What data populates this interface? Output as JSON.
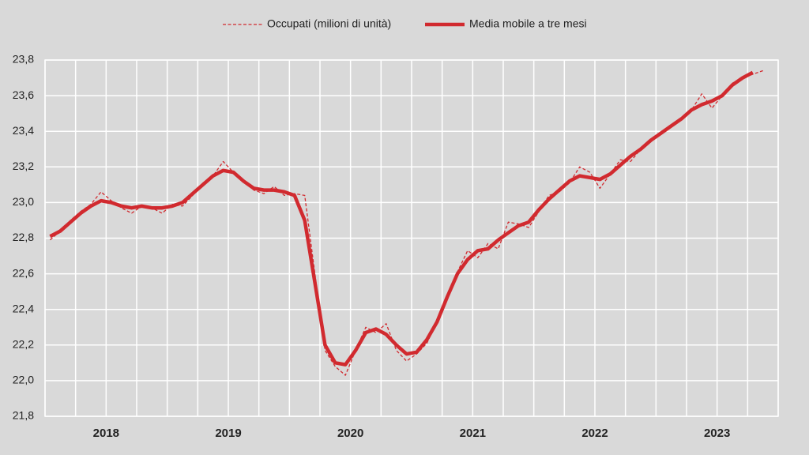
{
  "chart_data": {
    "type": "line",
    "categories": [
      null,
      null,
      null,
      null,
      null,
      null,
      "2018",
      null,
      null,
      null,
      null,
      null,
      null,
      null,
      null,
      null,
      null,
      null,
      "2019",
      null,
      null,
      null,
      null,
      null,
      null,
      null,
      null,
      null,
      null,
      null,
      "2020",
      null,
      null,
      null,
      null,
      null,
      null,
      null,
      null,
      null,
      null,
      null,
      "2021",
      null,
      null,
      null,
      null,
      null,
      null,
      null,
      null,
      null,
      null,
      null,
      "2022",
      null,
      null,
      null,
      null,
      null,
      null,
      null,
      null,
      null,
      null,
      null,
      "2023",
      null,
      null,
      null,
      null
    ],
    "series": [
      {
        "name": "Occupati (milioni di unità)",
        "color": "#d12a2f",
        "dashed": true,
        "values": [
          22.79,
          22.84,
          22.9,
          22.95,
          22.99,
          23.06,
          23.01,
          22.97,
          22.94,
          22.98,
          22.97,
          22.94,
          22.99,
          22.98,
          23.04,
          23.11,
          23.15,
          23.23,
          23.17,
          23.12,
          23.07,
          23.05,
          23.09,
          23.04,
          23.05,
          23.04,
          22.6,
          22.17,
          22.08,
          22.03,
          22.17,
          22.3,
          22.27,
          22.32,
          22.17,
          22.11,
          22.15,
          22.21,
          22.33,
          22.48,
          22.61,
          22.73,
          22.69,
          22.77,
          22.74,
          22.89,
          22.88,
          22.86,
          22.95,
          23.04,
          23.06,
          23.11,
          23.2,
          23.17,
          23.08,
          23.16,
          23.24,
          23.23,
          23.3,
          23.35,
          23.39,
          23.43,
          23.47,
          23.52,
          23.61,
          23.53,
          23.6,
          23.67,
          23.7,
          23.72,
          23.74
        ]
      },
      {
        "name": "Media mobile a tre mesi",
        "color": "#d12a2f",
        "dashed": false,
        "values": [
          22.81,
          22.84,
          22.89,
          22.94,
          22.98,
          23.01,
          23.0,
          22.98,
          22.97,
          22.98,
          22.97,
          22.97,
          22.98,
          23.0,
          23.05,
          23.1,
          23.15,
          23.18,
          23.17,
          23.12,
          23.08,
          23.07,
          23.07,
          23.06,
          23.04,
          22.9,
          22.55,
          22.2,
          22.1,
          22.09,
          22.17,
          22.27,
          22.29,
          22.26,
          22.2,
          22.15,
          22.16,
          22.23,
          22.33,
          22.47,
          22.6,
          22.68,
          22.73,
          22.74,
          22.79,
          22.83,
          22.87,
          22.89,
          22.96,
          23.02,
          23.07,
          23.12,
          23.15,
          23.14,
          23.13,
          23.16,
          23.21,
          23.26,
          23.3,
          23.35,
          23.39,
          23.43,
          23.47,
          23.52,
          23.55,
          23.57,
          23.6,
          23.66,
          23.7,
          23.73,
          null
        ]
      }
    ],
    "ylim": [
      21.8,
      23.8
    ],
    "yticks": [
      {
        "value": 21.8,
        "label": "21,8"
      },
      {
        "value": 22.0,
        "label": "22,0"
      },
      {
        "value": 22.2,
        "label": "22,2"
      },
      {
        "value": 22.4,
        "label": "22,4"
      },
      {
        "value": 22.6,
        "label": "22,6"
      },
      {
        "value": 22.8,
        "label": "22,8"
      },
      {
        "value": 23.0,
        "label": "23,0"
      },
      {
        "value": 23.2,
        "label": "23,2"
      },
      {
        "value": 23.4,
        "label": "23,4"
      },
      {
        "value": 23.6,
        "label": "23,6"
      },
      {
        "value": 23.8,
        "label": "23,8"
      }
    ],
    "grid": true,
    "legend": "top"
  }
}
